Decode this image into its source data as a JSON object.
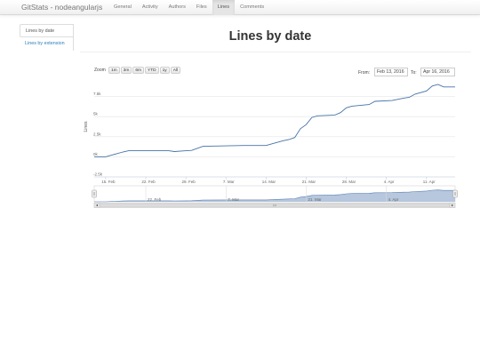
{
  "brand": "GitStats - nodeangularjs",
  "nav": [
    "General",
    "Activity",
    "Authors",
    "Files",
    "Lines",
    "Comments"
  ],
  "nav_active": 4,
  "sidebar": {
    "items": [
      "Lines by date",
      "Lines by extension"
    ],
    "active": 0
  },
  "title": "Lines by date",
  "zoom": {
    "label": "Zoom",
    "buttons": [
      "1m",
      "3m",
      "6m",
      "YTD",
      "1y",
      "All"
    ]
  },
  "range": {
    "from_label": "From:",
    "from_value": "Feb 13, 2016",
    "to_label": "To:",
    "to_value": "Apr 16, 2016"
  },
  "colors": {
    "line": "#4572a7",
    "navigator_fill": "#a9bdd8",
    "navigator_line": "#5c7fb0"
  },
  "chart_data": {
    "type": "line",
    "ylabel": "Lines",
    "ylim": [
      -2500,
      10000
    ],
    "y_ticks": [
      -2500,
      0,
      2500,
      5000,
      7500
    ],
    "y_tick_labels": [
      "-2.5k",
      "0k",
      "2.5k",
      "5k",
      "7.5k"
    ],
    "xlim": [
      "2016-02-13",
      "2016-04-16"
    ],
    "x_ticks": [
      "2016-02-15",
      "2016-02-22",
      "2016-02-29",
      "2016-03-07",
      "2016-03-14",
      "2016-03-21",
      "2016-03-28",
      "2016-04-04",
      "2016-04-11"
    ],
    "x_tick_labels": [
      "15. Feb",
      "22. Feb",
      "29. Feb",
      "7. Mar",
      "14. Mar",
      "21. Mar",
      "28. Mar",
      "4. Apr",
      "11. Apr"
    ],
    "navigator_tick_labels": [
      "22. Feb",
      "7. Mar",
      "21. Mar",
      "4. Apr"
    ],
    "series": [
      {
        "x": [
          "2016-02-13",
          "2016-02-15",
          "2016-02-16",
          "2016-02-18",
          "2016-02-19",
          "2016-02-24",
          "2016-02-26",
          "2016-02-27",
          "2016-02-29",
          "2016-03-01",
          "2016-03-03",
          "2016-03-10",
          "2016-03-14",
          "2016-03-16",
          "2016-03-17",
          "2016-03-18",
          "2016-03-19",
          "2016-03-20",
          "2016-03-21",
          "2016-03-22",
          "2016-03-23",
          "2016-03-26",
          "2016-03-27",
          "2016-03-28",
          "2016-03-29",
          "2016-04-01",
          "2016-04-02",
          "2016-04-05",
          "2016-04-07",
          "2016-04-08",
          "2016-04-09",
          "2016-04-11",
          "2016-04-12",
          "2016-04-13",
          "2016-04-14",
          "2016-04-16"
        ],
        "y": [
          0,
          0,
          200,
          600,
          750,
          750,
          750,
          650,
          750,
          800,
          1300,
          1400,
          1400,
          1800,
          2000,
          2150,
          2400,
          3500,
          4000,
          4900,
          5100,
          5200,
          5500,
          6100,
          6300,
          6500,
          6900,
          7000,
          7300,
          7400,
          7800,
          8200,
          8800,
          9000,
          8700,
          8700
        ]
      }
    ]
  }
}
